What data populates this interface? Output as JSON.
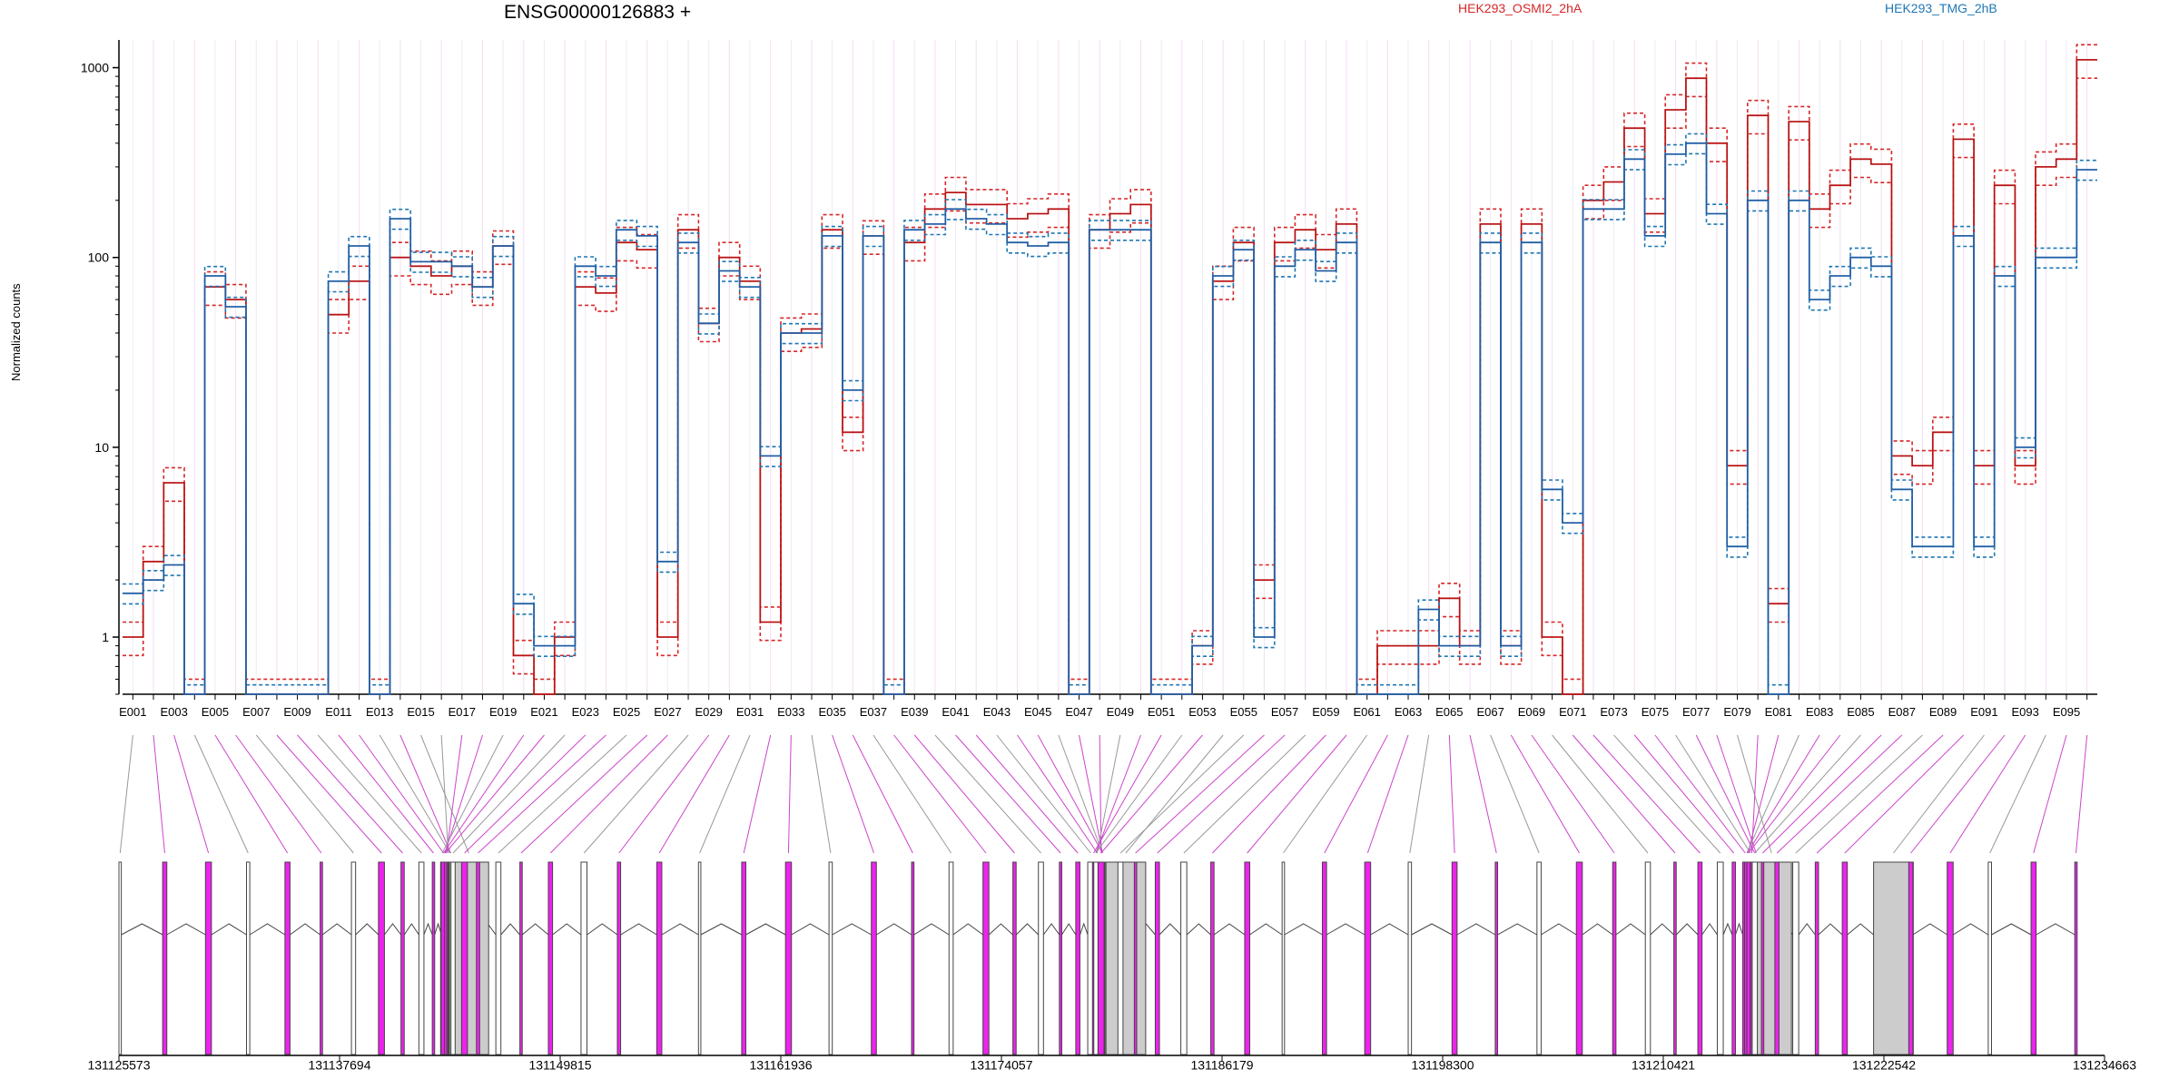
{
  "header": {
    "title": "ENSG00000126883 +",
    "legend_a": "HEK293_OSMI2_2hA",
    "legend_b": "HEK293_TMG_2hB",
    "ylabel": "Normalized counts"
  },
  "colors": {
    "group_a": "#d62728",
    "group_b": "#1f77b4",
    "median_a": "#8b0000",
    "median_b": "#303a8c",
    "exon_fill_sig": "#ee22ee",
    "exon_fill_plain": "#cccccc",
    "link_sig": "#cc44cc",
    "link_plain": "#999999"
  },
  "chart_data": {
    "type": "line",
    "yscale": "log",
    "ylim": [
      0.5,
      1400
    ],
    "yticks": [
      1,
      10,
      100,
      1000
    ],
    "ytick_labels": [
      "1",
      "10",
      "100",
      "1000"
    ],
    "ylabel": "Normalized counts",
    "grid": "vertical lines per exon",
    "legend_position": "top",
    "x_tick_labels": [
      "E001",
      "E003",
      "E005",
      "E007",
      "E009",
      "E011",
      "E013",
      "E015",
      "E017",
      "E019",
      "E021",
      "E023",
      "E025",
      "E027",
      "E029",
      "E031",
      "E033",
      "E035",
      "E037",
      "E039",
      "E041",
      "E043",
      "E045",
      "E047",
      "E049",
      "E051",
      "E053",
      "E055",
      "E057",
      "E059",
      "E061",
      "E063",
      "E065",
      "E067",
      "E069",
      "E071",
      "E073",
      "E075",
      "E077",
      "E079",
      "E081",
      "E083",
      "E085",
      "E087",
      "E089",
      "E091",
      "E093",
      "E095"
    ],
    "exons": [
      "E001",
      "E002",
      "E003",
      "E004",
      "E005",
      "E006",
      "E007",
      "E008",
      "E009",
      "E010",
      "E011",
      "E012",
      "E013",
      "E014",
      "E015",
      "E016",
      "E017",
      "E018",
      "E019",
      "E020",
      "E021",
      "E022",
      "E023",
      "E024",
      "E025",
      "E026",
      "E027",
      "E028",
      "E029",
      "E030",
      "E031",
      "E032",
      "E033",
      "E034",
      "E035",
      "E036",
      "E037",
      "E038",
      "E039",
      "E040",
      "E041",
      "E042",
      "E043",
      "E044",
      "E045",
      "E046",
      "E047",
      "E048",
      "E049",
      "E050",
      "E051",
      "E052",
      "E053",
      "E054",
      "E055",
      "E056",
      "E057",
      "E058",
      "E059",
      "E060",
      "E061",
      "E062",
      "E063",
      "E064",
      "E065",
      "E066",
      "E067",
      "E068",
      "E069",
      "E070",
      "E071",
      "E072",
      "E073",
      "E074",
      "E075",
      "E076",
      "E077",
      "E078",
      "E079",
      "E080",
      "E081",
      "E082",
      "E083",
      "E084",
      "E085",
      "E086",
      "E087",
      "E088",
      "E089",
      "E090",
      "E091",
      "E092",
      "E093",
      "E094",
      "E095",
      "E096"
    ],
    "series": [
      {
        "name": "HEK293_OSMI2_2hA",
        "values": [
          1,
          2.5,
          6.5,
          0.5,
          70,
          60,
          0.5,
          0.5,
          0.5,
          0.5,
          50,
          75,
          0.5,
          100,
          90,
          80,
          90,
          70,
          115,
          0.8,
          0.5,
          1,
          70,
          65,
          120,
          110,
          1,
          140,
          45,
          100,
          75,
          1.2,
          40,
          42,
          140,
          12,
          130,
          0.5,
          120,
          180,
          220,
          190,
          190,
          160,
          170,
          180,
          0.5,
          140,
          170,
          190,
          0.5,
          0.5,
          0.9,
          75,
          120,
          2,
          120,
          140,
          110,
          150,
          0.5,
          0.9,
          0.9,
          0.9,
          1.6,
          0.9,
          150,
          0.9,
          150,
          1,
          0.5,
          200,
          250,
          480,
          170,
          600,
          880,
          400,
          8,
          560,
          1.5,
          520,
          180,
          240,
          330,
          310,
          9,
          8,
          12,
          420,
          8,
          240,
          8,
          300,
          330,
          1100
        ]
      },
      {
        "name": "HEK293_TMG_2hB",
        "values": [
          1.7,
          2,
          2.4,
          0.5,
          80,
          55,
          0.5,
          0.5,
          0.5,
          0.5,
          75,
          115,
          0.5,
          160,
          95,
          95,
          90,
          70,
          115,
          1.5,
          0.9,
          0.9,
          90,
          80,
          140,
          130,
          2.5,
          120,
          45,
          85,
          70,
          9,
          40,
          40,
          130,
          20,
          130,
          0.5,
          140,
          150,
          180,
          160,
          150,
          120,
          115,
          120,
          0.5,
          140,
          140,
          140,
          0.5,
          0.5,
          0.9,
          80,
          110,
          1,
          90,
          110,
          85,
          120,
          0.5,
          0.5,
          0.5,
          1.4,
          0.9,
          0.9,
          120,
          0.9,
          120,
          6,
          4,
          180,
          180,
          330,
          130,
          350,
          400,
          170,
          3,
          200,
          0.5,
          200,
          60,
          80,
          100,
          90,
          6,
          3,
          3,
          130,
          3,
          80,
          10,
          100,
          100,
          290
        ]
      }
    ],
    "genomic_axis_labels": [
      "131125573",
      "131137694",
      "131149815",
      "131161936",
      "131174057",
      "131186179",
      "131198300",
      "131210421",
      "131222542",
      "131234663"
    ],
    "genomic_range": [
      131125573,
      131234663
    ]
  }
}
